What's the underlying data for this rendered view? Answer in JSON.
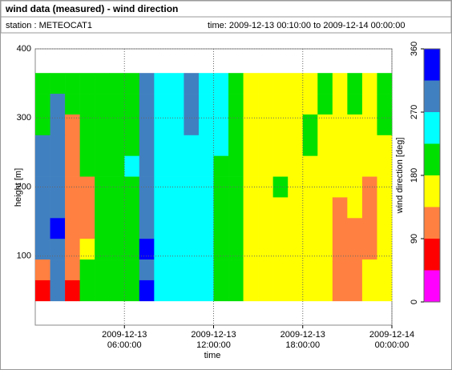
{
  "chart_data": {
    "type": "heatmap",
    "title": "wind data (measured) - wind direction",
    "station": "station : METEOCAT1",
    "time_range": "time: 2009-12-13 00:10:00 to 2009-12-14 00:00:00",
    "xlabel": "time",
    "ylabel": "height [m]",
    "colorbar_label": "wind direction [deg]",
    "xlim": [
      0,
      24
    ],
    "xticks": [
      {
        "value": 6,
        "label": "2009-12-13 06:00:00"
      },
      {
        "value": 12,
        "label": "2009-12-13 12:00:00"
      },
      {
        "value": 18,
        "label": "2009-12-13 18:00:00"
      },
      {
        "value": 24,
        "label": "2009-12-14 00:00:00"
      }
    ],
    "ylim": [
      0,
      400
    ],
    "yticks": [
      100,
      200,
      300,
      400
    ],
    "grid": true,
    "x": [
      0.5,
      1.5,
      2.5,
      3.5,
      4.5,
      5.5,
      6.5,
      7.5,
      8.5,
      9.5,
      10.5,
      11.5,
      12.5,
      13.5,
      14.5,
      15.5,
      16.5,
      17.5,
      18.5,
      19.5,
      20.5,
      21.5,
      22.5,
      23.5
    ],
    "heights": [
      350,
      320,
      290,
      260,
      230,
      200,
      170,
      140,
      110,
      80,
      50
    ],
    "z": [
      [
        200,
        200,
        200,
        200,
        200,
        200,
        200,
        290,
        245,
        245,
        290,
        245,
        245,
        200,
        160,
        160,
        160,
        160,
        160,
        200,
        160,
        200,
        160,
        200
      ],
      [
        200,
        290,
        200,
        200,
        200,
        200,
        200,
        290,
        245,
        245,
        290,
        245,
        245,
        200,
        160,
        160,
        160,
        160,
        160,
        200,
        160,
        200,
        160,
        200
      ],
      [
        200,
        290,
        115,
        200,
        200,
        200,
        200,
        290,
        245,
        245,
        290,
        245,
        245,
        200,
        160,
        160,
        160,
        160,
        200,
        160,
        160,
        160,
        160,
        200
      ],
      [
        290,
        290,
        115,
        200,
        200,
        200,
        200,
        290,
        245,
        245,
        245,
        245,
        245,
        200,
        160,
        160,
        160,
        160,
        200,
        160,
        160,
        160,
        160,
        160
      ],
      [
        290,
        290,
        115,
        200,
        200,
        200,
        245,
        290,
        245,
        245,
        245,
        245,
        200,
        200,
        160,
        160,
        160,
        160,
        160,
        160,
        160,
        160,
        160,
        160
      ],
      [
        290,
        290,
        115,
        115,
        200,
        200,
        200,
        290,
        245,
        245,
        245,
        245,
        200,
        200,
        160,
        160,
        200,
        160,
        160,
        160,
        160,
        160,
        115,
        160
      ],
      [
        290,
        290,
        115,
        115,
        200,
        200,
        200,
        290,
        245,
        245,
        245,
        245,
        200,
        200,
        160,
        160,
        160,
        160,
        160,
        160,
        115,
        160,
        115,
        160
      ],
      [
        290,
        335,
        115,
        115,
        200,
        200,
        200,
        290,
        245,
        245,
        245,
        245,
        200,
        200,
        160,
        160,
        160,
        160,
        160,
        160,
        115,
        115,
        115,
        160
      ],
      [
        290,
        290,
        115,
        160,
        200,
        200,
        200,
        335,
        245,
        245,
        245,
        245,
        200,
        200,
        160,
        160,
        160,
        160,
        160,
        160,
        115,
        115,
        115,
        160
      ],
      [
        115,
        290,
        115,
        200,
        200,
        200,
        200,
        290,
        245,
        245,
        245,
        245,
        200,
        200,
        160,
        160,
        160,
        160,
        160,
        160,
        115,
        115,
        160,
        160
      ],
      [
        70,
        290,
        70,
        200,
        200,
        200,
        200,
        335,
        245,
        245,
        245,
        245,
        200,
        200,
        160,
        160,
        160,
        160,
        160,
        160,
        115,
        115,
        160,
        160
      ]
    ],
    "colorbar": {
      "bins": [
        0,
        45,
        90,
        135,
        180,
        225,
        270,
        315,
        360
      ],
      "colors": [
        "#ff00ff",
        "#ff0000",
        "#ff8040",
        "#ffff00",
        "#00e000",
        "#00ffff",
        "#4080c0",
        "#0000ff"
      ],
      "ticks": [
        0,
        90,
        180,
        270,
        360
      ]
    }
  }
}
